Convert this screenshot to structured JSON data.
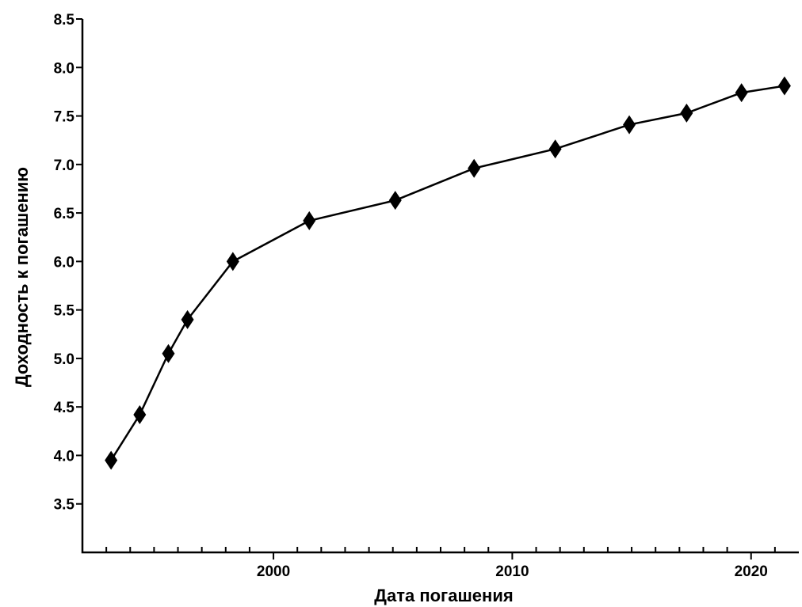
{
  "chart_data": {
    "type": "line",
    "title": "",
    "xlabel": "Дата погашения",
    "ylabel": "Доходность к погашению",
    "xlim": [
      1992,
      2022
    ],
    "ylim": [
      3.0,
      8.5
    ],
    "x_ticks": [
      2000,
      2010,
      2020
    ],
    "x_tick_labels": [
      "2000",
      "2010",
      "2020"
    ],
    "x_minor_ticks": [
      1993,
      1994,
      1995,
      1996,
      1997,
      1998,
      1999,
      2001,
      2002,
      2003,
      2004,
      2005,
      2006,
      2007,
      2008,
      2009,
      2011,
      2012,
      2013,
      2014,
      2015,
      2016,
      2017,
      2018,
      2019,
      2021
    ],
    "y_ticks": [
      3.5,
      4.0,
      4.5,
      5.0,
      5.5,
      6.0,
      6.5,
      7.0,
      7.5,
      8.0,
      8.5
    ],
    "y_tick_labels": [
      "3.5",
      "4.0",
      "4.5",
      "5.0",
      "5.5",
      "6.0",
      "6.5",
      "7.0",
      "7.5",
      "8.0",
      "8.5"
    ],
    "grid": false,
    "legend": "none",
    "marker": "diamond",
    "series": [
      {
        "x": [
          1993.2,
          1994.4,
          1995.6,
          1996.4,
          1998.3,
          2001.5,
          2005.1,
          2008.4,
          2011.8,
          2014.9,
          2017.3,
          2019.6,
          2021.4
        ],
        "y": [
          3.95,
          4.42,
          5.05,
          5.4,
          6.0,
          6.42,
          6.63,
          6.96,
          7.16,
          7.41,
          7.53,
          7.74,
          7.81
        ]
      }
    ]
  }
}
